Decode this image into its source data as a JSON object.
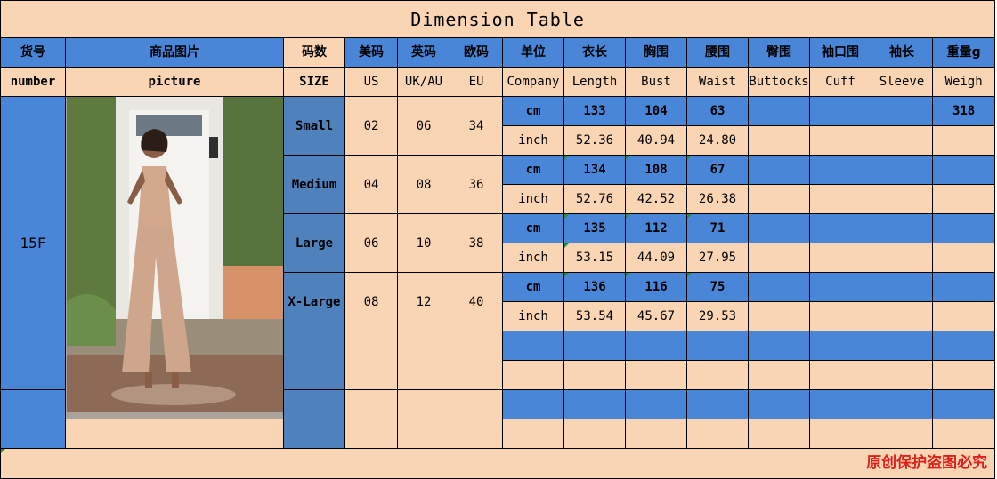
{
  "title": "Dimension Table",
  "header_cn": [
    "货号",
    "商品图片",
    "码数",
    "美码",
    "英码",
    "欧码",
    "单位",
    "衣长",
    "胸围",
    "腰围",
    "臀围",
    "袖口围",
    "袖长",
    "重量g"
  ],
  "header_en": [
    "number",
    "picture",
    "SIZE",
    "US",
    "UK/AU",
    "EU",
    "Company",
    "Length",
    "Bust",
    "Waist",
    "Buttocks",
    "Cuff",
    "Sleeve",
    "Weigh"
  ],
  "item_number": "15F",
  "weight": "318",
  "sizes": [
    {
      "name": "Small",
      "us": "02",
      "uk": "06",
      "eu": "34",
      "cm": {
        "unit": "cm",
        "length": "133",
        "bust": "104",
        "waist": "63"
      },
      "inch": {
        "unit": "inch",
        "length": "52.36",
        "bust": "40.94",
        "waist": "24.80"
      }
    },
    {
      "name": "Medium",
      "us": "04",
      "uk": "08",
      "eu": "36",
      "cm": {
        "unit": "cm",
        "length": "134",
        "bust": "108",
        "waist": "67"
      },
      "inch": {
        "unit": "inch",
        "length": "52.76",
        "bust": "42.52",
        "waist": "26.38"
      }
    },
    {
      "name": "Large",
      "us": "06",
      "uk": "10",
      "eu": "38",
      "cm": {
        "unit": "cm",
        "length": "135",
        "bust": "112",
        "waist": "71"
      },
      "inch": {
        "unit": "inch",
        "length": "53.15",
        "bust": "44.09",
        "waist": "27.95"
      }
    },
    {
      "name": "X-Large",
      "us": "08",
      "uk": "12",
      "eu": "40",
      "cm": {
        "unit": "cm",
        "length": "136",
        "bust": "116",
        "waist": "75"
      },
      "inch": {
        "unit": "inch",
        "length": "53.54",
        "bust": "45.67",
        "waist": "29.53"
      }
    }
  ],
  "footer": "原创保护盗图必究",
  "colors": {
    "peach": "#fad5b4",
    "blue": "#4a86d8",
    "steel": "#4f81bd",
    "footer_red": "#e0201b"
  }
}
